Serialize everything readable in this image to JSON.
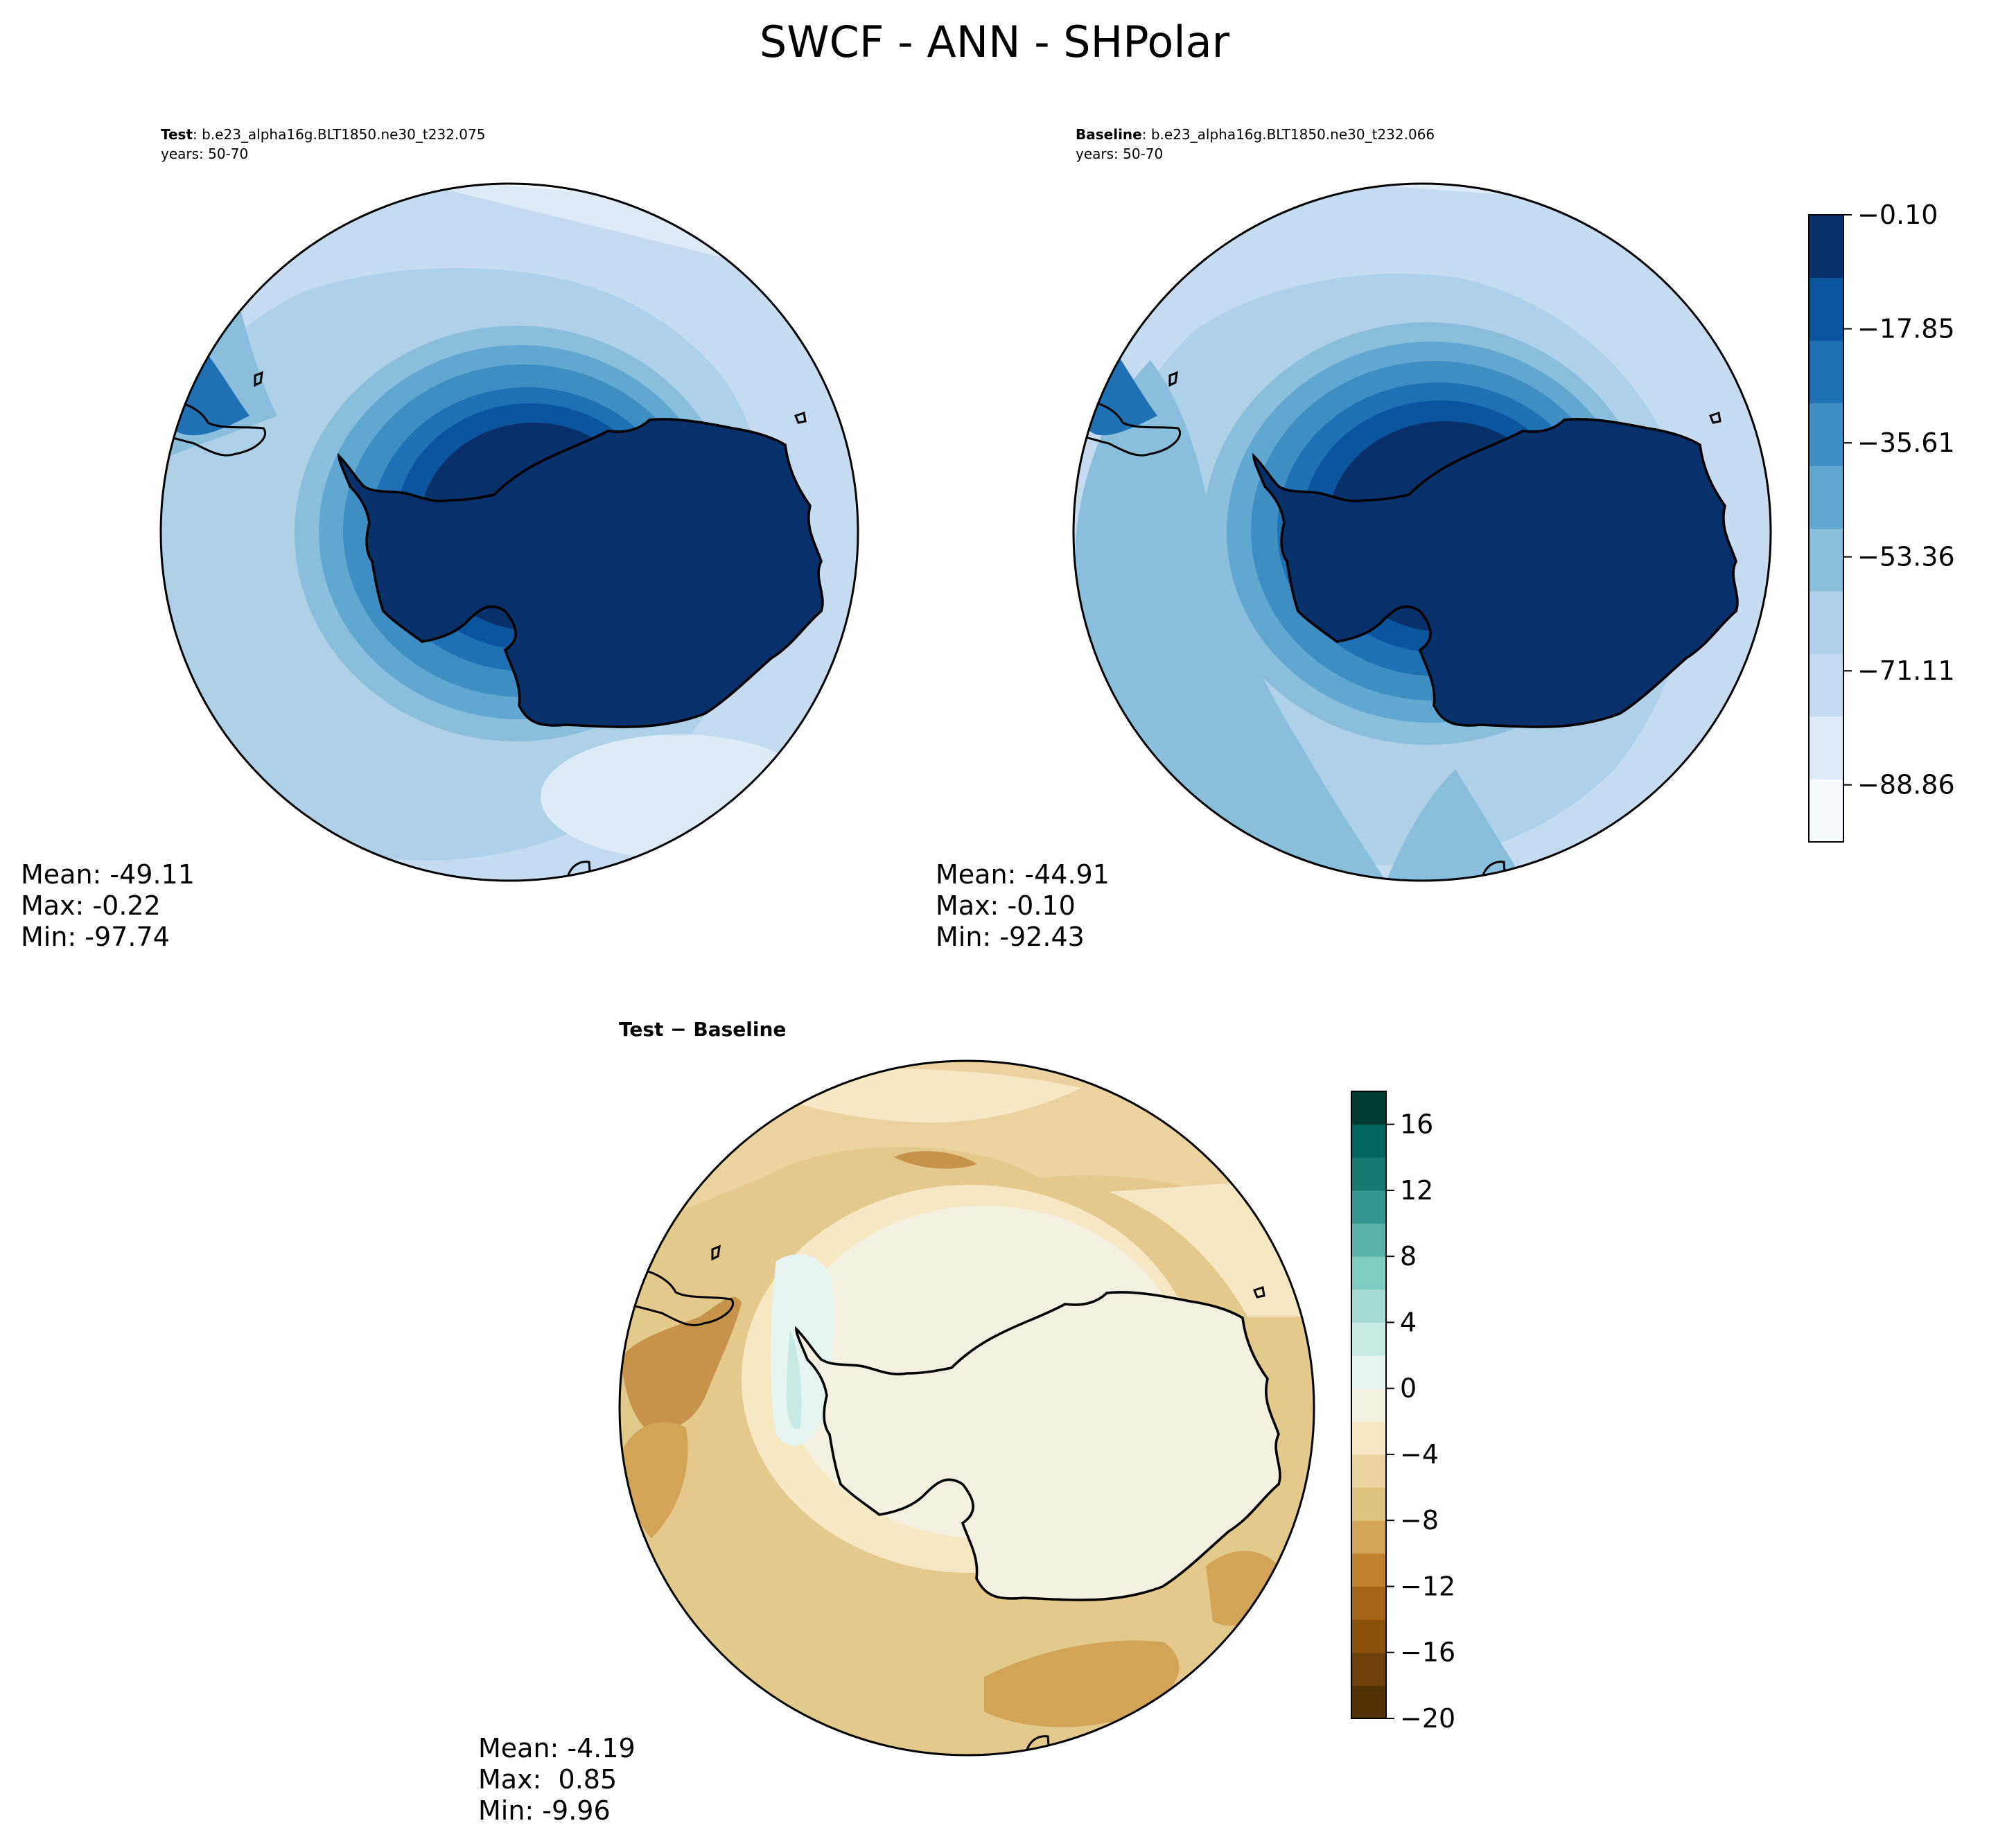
{
  "title": "SWCF - ANN - SHPolar",
  "chart_data": [
    {
      "type": "polar-contour-map",
      "panel": "test",
      "label_bold": "Test",
      "label_rest": ": b.e23_alpha16g.BLT1850.ne30_t232.075",
      "years": "years: 50-70",
      "stats": {
        "mean": "Mean: -49.11",
        "max": "Max: -0.22",
        "min": "Min: -97.74"
      }
    },
    {
      "type": "polar-contour-map",
      "panel": "baseline",
      "label_bold": "Baseline",
      "label_rest": ": b.e23_alpha16g.BLT1850.ne30_t232.066",
      "years": "years: 50-70",
      "stats": {
        "mean": "Mean: -44.91",
        "max": "Max: -0.10",
        "min": "Min: -92.43"
      },
      "colorbar": {
        "ticks": [
          "−0.10",
          "−17.85",
          "−35.61",
          "−53.36",
          "−71.11",
          "−88.86"
        ],
        "tick_values": [
          -0.1,
          -17.85,
          -35.61,
          -53.36,
          -71.11,
          -88.86
        ],
        "range": [
          -97.74,
          -0.1
        ],
        "colors": [
          "#f7fbff",
          "#deebf7",
          "#c6dbef",
          "#afd1e7",
          "#89bfdd",
          "#60a7d2",
          "#3e8ec4",
          "#2070b4",
          "#0b559f",
          "#08306b"
        ]
      }
    },
    {
      "type": "polar-contour-map",
      "panel": "difference",
      "label": "Test − Baseline",
      "stats": {
        "mean": "Mean: -4.19",
        "max": "Max:  0.85",
        "min": "Min: -9.96"
      },
      "colorbar": {
        "ticks": [
          "16",
          "12",
          "8",
          "4",
          "0",
          "−4",
          "−8",
          "−12",
          "−16",
          "−20"
        ],
        "tick_values": [
          16,
          12,
          8,
          4,
          0,
          -4,
          -8,
          -12,
          -16,
          -20
        ],
        "range": [
          -20,
          18
        ],
        "levels": [
          -20,
          -18,
          -16,
          -14,
          -12,
          -10,
          -8,
          -6,
          -4,
          -2,
          0,
          2,
          4,
          6,
          8,
          10,
          12,
          14,
          16,
          18
        ],
        "colors": [
          "#543005",
          "#6f400a",
          "#8c510a",
          "#a5661a",
          "#bf812d",
          "#d3a457",
          "#dfc27d",
          "#ead39f",
          "#f6e8c3",
          "#f3efe1",
          "#e6f4f1",
          "#c7eae5",
          "#a5dcd2",
          "#80cdc1",
          "#5ab2a8",
          "#35978f",
          "#17796f",
          "#01665e",
          "#003c30"
        ]
      }
    }
  ],
  "colors": {
    "land_test": "#08306b",
    "land_diff": "#f3efe1",
    "blue_ramp": [
      "#f7fbff",
      "#deebf7",
      "#c6dbef",
      "#afd1e7",
      "#89bfdd",
      "#60a7d2",
      "#3e8ec4",
      "#2070b4",
      "#0b559f",
      "#08306b"
    ],
    "diff_fill": [
      "#e3c98b",
      "#ead39f",
      "#f6e8c3",
      "#f3efe1",
      "#e6f4f1",
      "#d3a457",
      "#c7924a"
    ]
  }
}
